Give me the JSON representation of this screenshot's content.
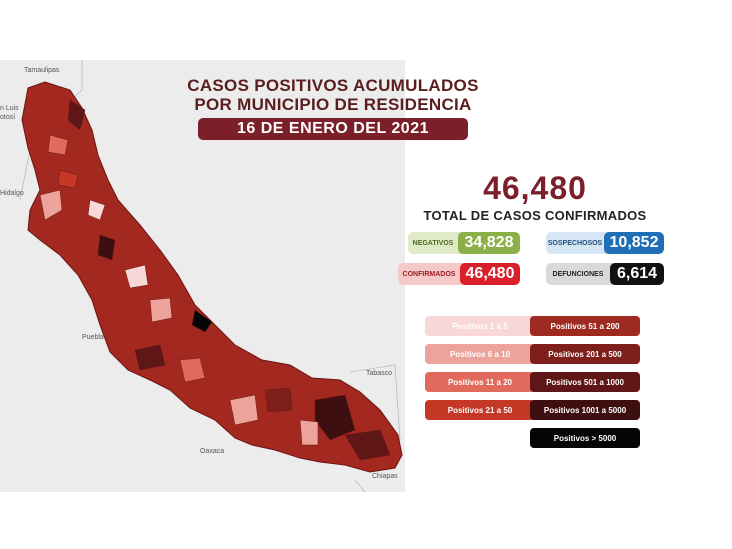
{
  "title": {
    "line1": "CASOS POSITIVOS ACUMULADOS",
    "line2": "POR MUNICIPIO DE RESIDENCIA",
    "date": "16 DE ENERO DEL 2021"
  },
  "totals": {
    "total_value": "46,480",
    "total_label": "TOTAL DE CASOS CONFIRMADOS"
  },
  "stats": {
    "negativos": {
      "label": "NEGATIVOS",
      "value": "34,828",
      "color": "#8bb04a",
      "bg": "#dfeac8"
    },
    "sospechosos": {
      "label": "SOSPECHOSOS",
      "value": "10,852",
      "color": "#1e6fb5",
      "bg": "#d6e6f4"
    },
    "confirmados": {
      "label": "CONFIRMADOS",
      "value": "46,480",
      "color": "#d8202a",
      "bg": "#f6c9c9"
    },
    "defunciones": {
      "label": "DEFUNCIONES",
      "value": "6,614",
      "color": "#111111",
      "bg": "#d9d9d9"
    }
  },
  "legend": [
    {
      "label": "Positivos 1 a 5",
      "color": "#f8d8d6"
    },
    {
      "label": "Positivos 6 a 10",
      "color": "#eda29b"
    },
    {
      "label": "Positivos 11 a 20",
      "color": "#e26a5d"
    },
    {
      "label": "Positivos 21 a 50",
      "color": "#c43825"
    },
    {
      "label": "Positivos 51 a 200",
      "color": "#9e2a22"
    },
    {
      "label": "Positivos 201 a 500",
      "color": "#7e1f1c"
    },
    {
      "label": "Positivos 501 a 1000",
      "color": "#5e1716"
    },
    {
      "label": "Positivos 1001 a 5000",
      "color": "#3d0f10"
    },
    {
      "label": "Positivos > 5000",
      "color": "#050505"
    }
  ],
  "map_labels": {
    "tamaulipas": "Tamaulipas",
    "san_luis": "n Luis",
    "potosi": "otosí",
    "hidalgo": "Hidalgo",
    "puebla": "Puebla",
    "oaxaca": "Oaxaca",
    "tabasco": "Tabasco",
    "chiapas": "Chiapas"
  }
}
